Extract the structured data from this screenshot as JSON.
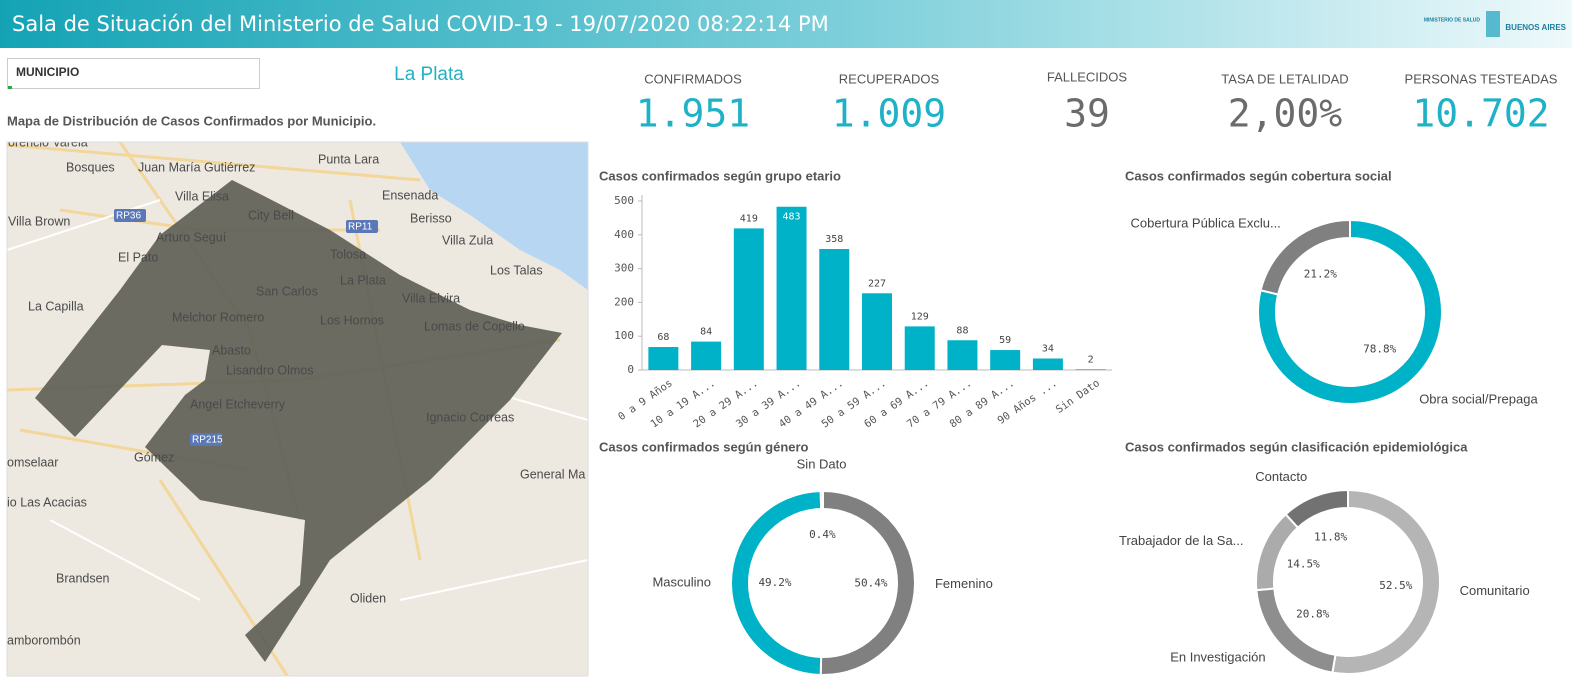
{
  "header": {
    "title": "Sala de Situación del Ministerio de Salud COVID-19 - 19/07/2020 08:22:14 PM",
    "logo_top": "MINISTERIO DE SALUD",
    "logo_bottom": "BUENOS AIRES"
  },
  "filter": {
    "label": "MUNICIPIO",
    "selection": "La Plata"
  },
  "map": {
    "title": "Mapa de Distribución de Casos Confirmados por Municipio.",
    "places": [
      "orencio Varela",
      "Bosques",
      "Juan María Gutiérrez",
      "Punta Lara",
      "Villa Elisa",
      "City Bell",
      "Ensenada",
      "RP36",
      "RP11",
      "Berisso",
      "Villa Brown",
      "Arturo Seguí",
      "Villa Zula",
      "Tolosa",
      "El Pato",
      "La Plata",
      "Los Talas",
      "San Carlos",
      "Villa Elvira",
      "La Capilla",
      "Melchor Romero",
      "Los Hornos",
      "Lomas de Copello",
      "Abasto",
      "Lisandro Olmos",
      "Angel Etcheverry",
      "Ignacio Correas",
      "RP215",
      "omselaar",
      "Gómez",
      "General Ma",
      "io Las Acacias",
      "Brandsen",
      "Oliden",
      "amborombón"
    ]
  },
  "kpis": [
    {
      "label": "CONFIRMADOS",
      "value": "1.951",
      "color": "#1fb2c6"
    },
    {
      "label": "RECUPERADOS",
      "value": "1.009",
      "color": "#1fb2c6"
    },
    {
      "label": "FALLECIDOS",
      "value": "39",
      "color": "#6b6b6b"
    },
    {
      "label": "TASA DE LETALIDAD",
      "value": "2,00%",
      "color": "#6b6b6b"
    },
    {
      "label": "PERSONAS TESTEADAS",
      "value": "10.702",
      "color": "#1fb2c6"
    }
  ],
  "chart_data": [
    {
      "type": "bar",
      "title": "Casos confirmados según grupo etario",
      "categories": [
        "0 a 9 Años",
        "10 a 19 A...",
        "20 a 29 A...",
        "30 a 39 A...",
        "40 a 49 A...",
        "50 a 59 A...",
        "60 a 69 A...",
        "70 a 79 A...",
        "80 a 89 A...",
        "90 Años ...",
        "Sin Dato"
      ],
      "values": [
        68,
        84,
        419,
        483,
        358,
        227,
        129,
        88,
        59,
        34,
        2
      ],
      "color": "#00b2c8",
      "ylim": [
        0,
        500
      ],
      "yticks": [
        0,
        100,
        200,
        300,
        400,
        500
      ]
    },
    {
      "type": "donut",
      "title": "Casos confirmados según cobertura social",
      "categories": [
        "Obra social/Prepaga",
        "Cobertura Pública Exclu..."
      ],
      "values": [
        78.8,
        21.2
      ],
      "value_labels": [
        "78.8%",
        "21.2%"
      ],
      "colors": [
        "#00b2c8",
        "#808080"
      ]
    },
    {
      "type": "donut",
      "title": "Casos confirmados según género",
      "categories": [
        "Femenino",
        "Masculino",
        "Sin Dato"
      ],
      "values": [
        50.4,
        49.2,
        0.4
      ],
      "value_labels": [
        "50.4%",
        "49.2%",
        "0.4%"
      ],
      "colors": [
        "#808080",
        "#00b2c8",
        "#9ad9e2"
      ]
    },
    {
      "type": "donut",
      "title": "Casos confirmados según clasificación epidemiológica",
      "categories": [
        "Comunitario",
        "En Investigación",
        "Trabajador de la Sa...",
        "Contacto"
      ],
      "values": [
        52.5,
        20.8,
        14.5,
        11.8
      ],
      "value_labels": [
        "52.5%",
        "20.8%",
        "14.5%",
        "11.8%"
      ],
      "colors": [
        "#b5b5b5",
        "#8e8e8e",
        "#ababab",
        "#727272"
      ]
    }
  ]
}
